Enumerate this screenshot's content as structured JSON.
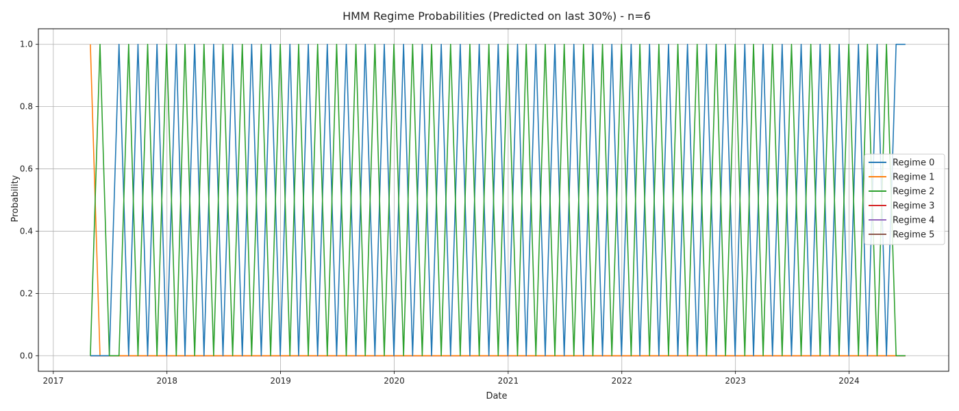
{
  "chart_data": {
    "type": "line",
    "title": "HMM Regime Probabilities (Predicted on last 30%) - n=6",
    "xlabel": "Date",
    "ylabel": "Probability",
    "xlim": [
      "2016-11-14",
      "2024-11-16"
    ],
    "ylim": [
      -0.05,
      1.05
    ],
    "x_ticks": [
      "2017",
      "2018",
      "2019",
      "2020",
      "2021",
      "2022",
      "2023",
      "2024"
    ],
    "y_ticks": [
      "0.0",
      "0.2",
      "0.4",
      "0.6",
      "0.8",
      "1.0"
    ],
    "grid": true,
    "legend_position": "center-right",
    "start_date": "2017-04-30",
    "end_date": "2024-06-30",
    "frequency": "monthly",
    "series": [
      {
        "name": "Regime 0",
        "color": "#1f77b4",
        "values": [
          0,
          0,
          0,
          1,
          0,
          1,
          0,
          1,
          0,
          1,
          0,
          1,
          0,
          1,
          0,
          1,
          0,
          1,
          0,
          1,
          0,
          1,
          0,
          1,
          0,
          1,
          0,
          1,
          0,
          1,
          0,
          1,
          0,
          1,
          0,
          1,
          0,
          1,
          0,
          1,
          0,
          1,
          0,
          1,
          0,
          1,
          0,
          1,
          0,
          1,
          0,
          1,
          0,
          1,
          0,
          1,
          0,
          1,
          0,
          1,
          0,
          1,
          0,
          1,
          0,
          1,
          0,
          1,
          0,
          1,
          0,
          1,
          0,
          1,
          0,
          1,
          0,
          1,
          0,
          1,
          0,
          1,
          0,
          1,
          0,
          1,
          1
        ]
      },
      {
        "name": "Regime 1",
        "color": "#ff7f0e",
        "values": [
          1,
          0,
          0,
          0,
          0,
          0,
          0,
          0,
          0,
          0,
          0,
          0,
          0,
          0,
          0,
          0,
          0,
          0,
          0,
          0,
          0,
          0,
          0,
          0,
          0,
          0,
          0,
          0,
          0,
          0,
          0,
          0,
          0,
          0,
          0,
          0,
          0,
          0,
          0,
          0,
          0,
          0,
          0,
          0,
          0,
          0,
          0,
          0,
          0,
          0,
          0,
          0,
          0,
          0,
          0,
          0,
          0,
          0,
          0,
          0,
          0,
          0,
          0,
          0,
          0,
          0,
          0,
          0,
          0,
          0,
          0,
          0,
          0,
          0,
          0,
          0,
          0,
          0,
          0,
          0,
          0,
          0,
          0,
          0,
          0,
          0,
          0
        ]
      },
      {
        "name": "Regime 2",
        "color": "#2ca02c",
        "values": [
          0,
          1,
          0,
          0,
          1,
          0,
          1,
          0,
          1,
          0,
          1,
          0,
          1,
          0,
          1,
          0,
          1,
          0,
          1,
          0,
          1,
          0,
          1,
          0,
          1,
          0,
          1,
          0,
          1,
          0,
          1,
          0,
          1,
          0,
          1,
          0,
          1,
          0,
          1,
          0,
          1,
          0,
          1,
          0,
          1,
          0,
          1,
          0,
          1,
          0,
          1,
          0,
          1,
          0,
          1,
          0,
          1,
          0,
          1,
          0,
          1,
          0,
          1,
          0,
          1,
          0,
          1,
          0,
          1,
          0,
          1,
          0,
          1,
          0,
          1,
          0,
          1,
          0,
          1,
          0,
          1,
          0,
          1,
          0,
          1,
          0,
          0
        ]
      },
      {
        "name": "Regime 3",
        "color": "#d62728",
        "values": "all-zero"
      },
      {
        "name": "Regime 4",
        "color": "#9467bd",
        "values": "all-zero"
      },
      {
        "name": "Regime 5",
        "color": "#8c564b",
        "values": "all-zero"
      }
    ]
  }
}
